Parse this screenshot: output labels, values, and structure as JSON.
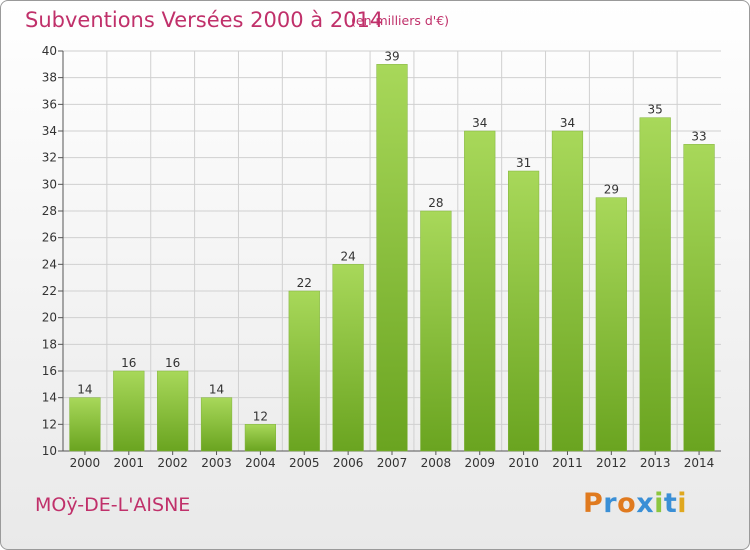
{
  "title": "Subventions Versées 2000 à 2014",
  "subtitle": "(en milliers d'€)",
  "commune": "MOÿ-DE-L'AISNE",
  "logo": {
    "letters": [
      "P",
      "r",
      "o",
      "x",
      "i",
      "t",
      "i"
    ],
    "colors": [
      "#e07a1f",
      "#3a8fd6",
      "#e07a1f",
      "#3a8fd6",
      "#8cc63f",
      "#3a8fd6",
      "#e0a81f"
    ]
  },
  "colors": {
    "bar_light": "#a8d85a",
    "bar_dark": "#6aa420",
    "title": "#c0306a"
  },
  "chart_data": {
    "type": "bar",
    "categories": [
      "2000",
      "2001",
      "2002",
      "2003",
      "2004",
      "2005",
      "2006",
      "2007",
      "2008",
      "2009",
      "2010",
      "2011",
      "2012",
      "2013",
      "2014"
    ],
    "values": [
      14,
      16,
      16,
      14,
      12,
      22,
      24,
      39,
      28,
      34,
      31,
      34,
      29,
      35,
      33
    ],
    "ylim": [
      10,
      40
    ],
    "yticks": [
      10,
      12,
      14,
      16,
      18,
      20,
      22,
      24,
      26,
      28,
      30,
      32,
      34,
      36,
      38,
      40
    ],
    "grid": true,
    "xlabel": "",
    "ylabel": ""
  }
}
